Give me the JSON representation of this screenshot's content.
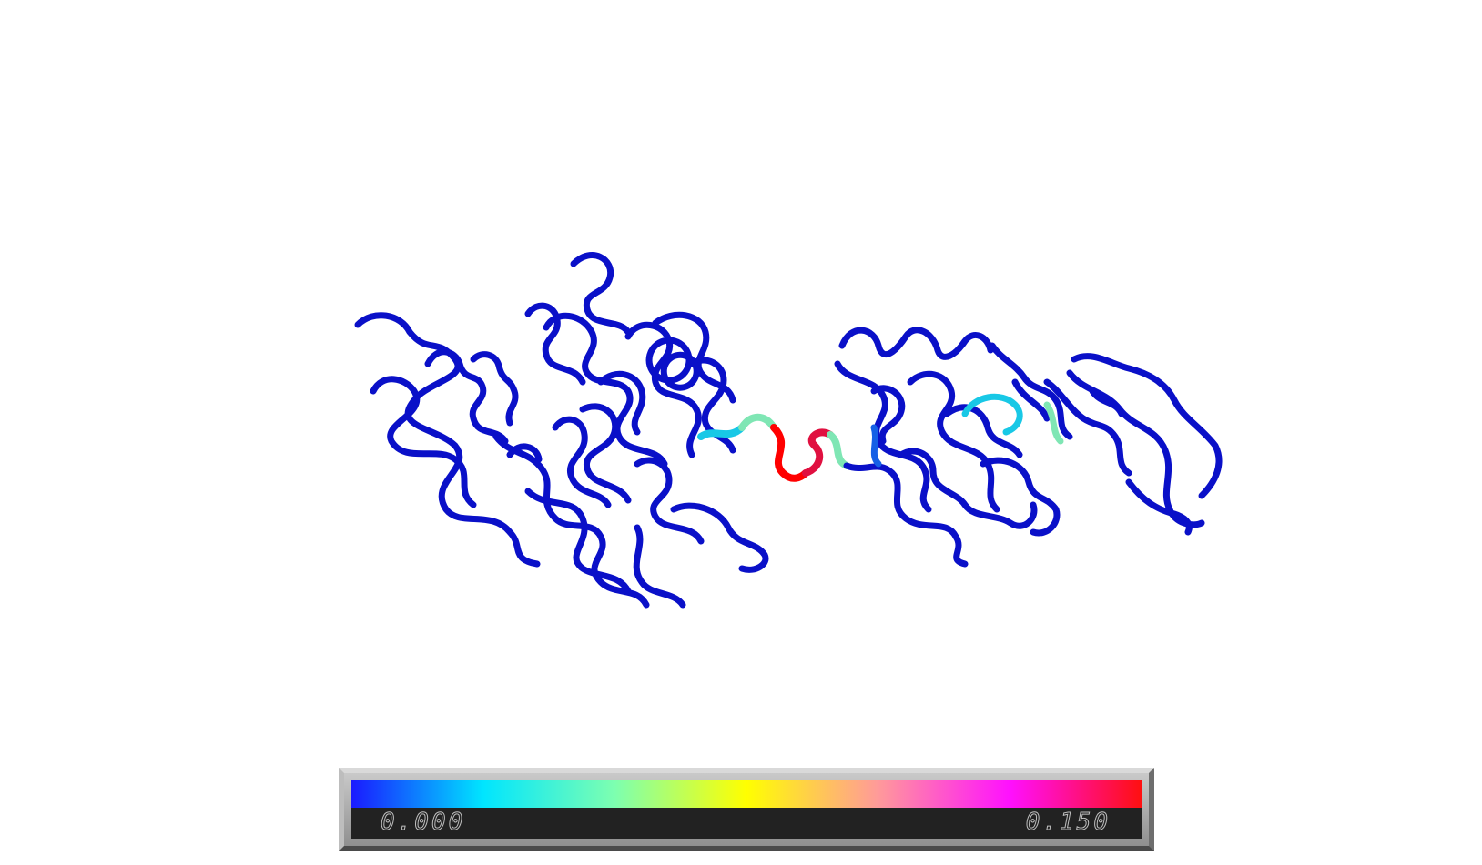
{
  "viewer": {
    "representation": "cartoon-tube",
    "background_color": "#ffffff"
  },
  "colorbar": {
    "min_label": "0.000",
    "max_label": "0.150",
    "gradient_colors": [
      "#1a1aff",
      "#00e5ff",
      "#7dffb0",
      "#ffff00",
      "#ff9a9a",
      "#ff10ff",
      "#ff1010"
    ]
  },
  "structure": {
    "main_color": "#0a10c8",
    "linker_colors": [
      "#18c8e6",
      "#7fe6b4",
      "#e01040",
      "#ff0000"
    ]
  }
}
